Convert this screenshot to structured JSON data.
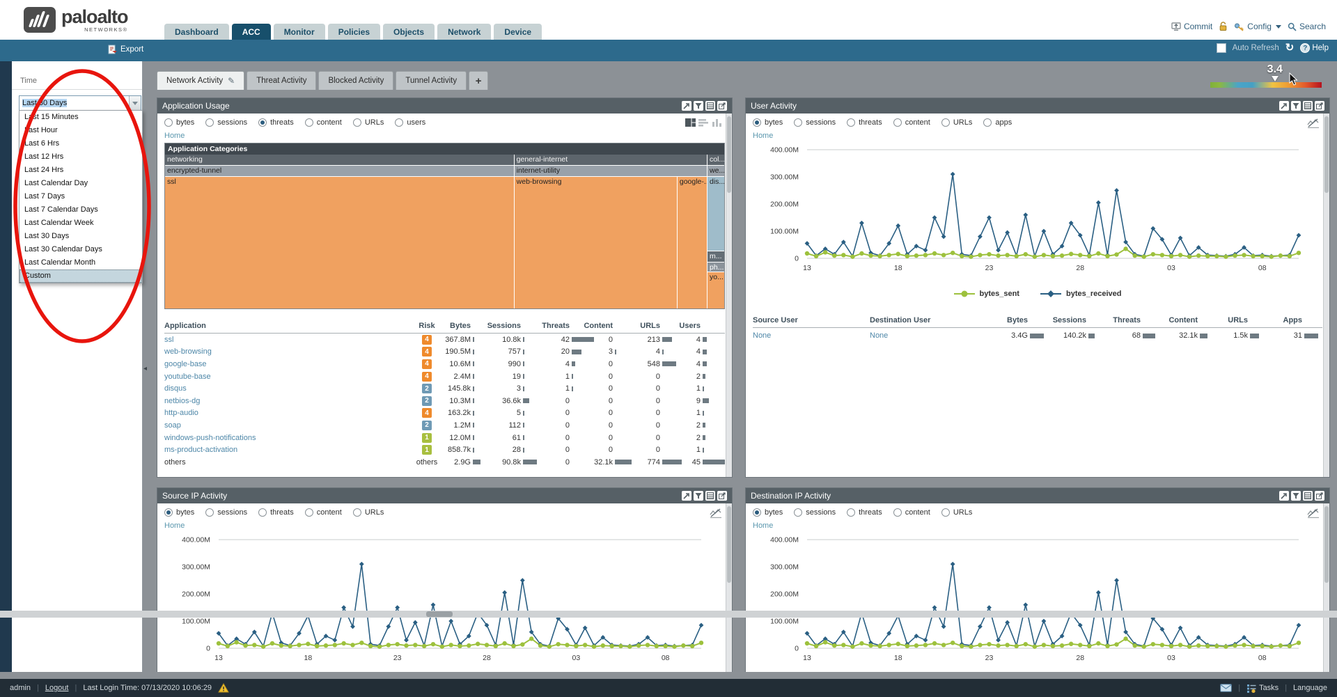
{
  "colors": {
    "accent_teal": "#2d6a8c",
    "nav_active": "#174f6b",
    "panel_header": "#566066",
    "treemap_orange": "#f0a160",
    "treemap_blue": "#9fbcca",
    "risk4": "#ef8a2c",
    "risk2": "#6f9ab5",
    "risk1": "#a8bf3f",
    "link": "#4e87a8",
    "bytes_sent": "#9dc13d",
    "bytes_received": "#2a5f83",
    "annotation_red": "#e8150d"
  },
  "header": {
    "logo_text": "paloalto",
    "logo_sub": "NETWORKS®",
    "nav_tabs": [
      {
        "label": "Dashboard",
        "active": false
      },
      {
        "label": "ACC",
        "active": true
      },
      {
        "label": "Monitor",
        "active": false
      },
      {
        "label": "Policies",
        "active": false
      },
      {
        "label": "Objects",
        "active": false
      },
      {
        "label": "Network",
        "active": false
      },
      {
        "label": "Device",
        "active": false
      }
    ],
    "commit_label": "Commit",
    "config_label": "Config",
    "search_label": "Search"
  },
  "toolbar": {
    "export_label": "Export",
    "auto_refresh_label": "Auto Refresh",
    "help_label": "Help"
  },
  "sidebar": {
    "time_label": "Time",
    "time_value": "Last 30 Days",
    "dropdown_options": [
      "Last 15 Minutes",
      "Last Hour",
      "Last 6 Hrs",
      "Last 12 Hrs",
      "Last 24 Hrs",
      "Last Calendar Day",
      "Last 7 Days",
      "Last 7 Calendar Days",
      "Last Calendar Week",
      "Last 30 Days",
      "Last 30 Calendar Days",
      "Last Calendar Month",
      "Custom"
    ],
    "highlighted_option": "Custom"
  },
  "acc": {
    "tabs": [
      {
        "label": "Network Activity",
        "active": true
      },
      {
        "label": "Threat Activity",
        "active": false
      },
      {
        "label": "Blocked Activity",
        "active": false
      },
      {
        "label": "Tunnel Activity",
        "active": false
      }
    ],
    "add_tab_label": "+",
    "risk_value": "3.4"
  },
  "panels": {
    "application_usage": {
      "title": "Application Usage",
      "metrics": [
        {
          "label": "bytes",
          "selected": false
        },
        {
          "label": "sessions",
          "selected": false
        },
        {
          "label": "threats",
          "selected": true
        },
        {
          "label": "content",
          "selected": false
        },
        {
          "label": "URLs",
          "selected": false
        },
        {
          "label": "users",
          "selected": false
        }
      ],
      "breadcrumb": "Home",
      "treemap": {
        "title": "Application Categories",
        "columns": [
          {
            "category": "networking",
            "subcategory": "encrypted-tunnel",
            "width_pct": 62.5,
            "layout": "h",
            "blocks": [
              {
                "label": "ssl",
                "color": "#f0a160",
                "text": "#222",
                "size_pct": 100
              }
            ]
          },
          {
            "category": "general-internet",
            "subcategory": "internet-utility",
            "width_pct": 34.5,
            "layout": "h",
            "blocks": [
              {
                "label": "web-browsing",
                "color": "#f0a160",
                "text": "#222",
                "size_pct": 84.7
              },
              {
                "label": "google-...",
                "color": "#f0a160",
                "text": "#222",
                "size_pct": 15.3
              }
            ]
          },
          {
            "category": "col...",
            "subcategory": "we...",
            "width_pct": 3.0,
            "layout": "v",
            "blocks": [
              {
                "label": "dis...",
                "color": "#9fbcca",
                "text": "#222",
                "size_pct": 57
              },
              {
                "label": "m...",
                "color": "#646e76",
                "text": "#fff",
                "size_pct": 8
              },
              {
                "label": "ph...",
                "color": "#8b939b",
                "text": "#fff",
                "size_pct": 7
              },
              {
                "label": "yo...",
                "color": "#f0a160",
                "text": "#222",
                "size_pct": 28
              }
            ]
          }
        ]
      },
      "table": {
        "columns": [
          "Application",
          "Risk",
          "Bytes",
          "Sessions",
          "Threats",
          "Content",
          "URLs",
          "Users"
        ],
        "rows": [
          {
            "application": "ssl",
            "risk": "4",
            "cells": [
              {
                "t": "367.8M",
                "b": 2
              },
              {
                "t": "10.8k",
                "b": 2
              },
              {
                "t": "42",
                "b": 32
              },
              {
                "t": "0",
                "b": 0
              },
              {
                "t": "213",
                "b": 14
              },
              {
                "t": "4",
                "b": 6
              }
            ]
          },
          {
            "application": "web-browsing",
            "risk": "4",
            "cells": [
              {
                "t": "190.5M",
                "b": 2
              },
              {
                "t": "757",
                "b": 2
              },
              {
                "t": "20",
                "b": 14
              },
              {
                "t": "3",
                "b": 2
              },
              {
                "t": "4",
                "b": 2
              },
              {
                "t": "4",
                "b": 6
              }
            ]
          },
          {
            "application": "google-base",
            "risk": "4",
            "cells": [
              {
                "t": "10.6M",
                "b": 2
              },
              {
                "t": "990",
                "b": 2
              },
              {
                "t": "4",
                "b": 5
              },
              {
                "t": "0",
                "b": 0
              },
              {
                "t": "548",
                "b": 20
              },
              {
                "t": "4",
                "b": 6
              }
            ]
          },
          {
            "application": "youtube-base",
            "risk": "4",
            "cells": [
              {
                "t": "2.4M",
                "b": 2
              },
              {
                "t": "19",
                "b": 2
              },
              {
                "t": "1",
                "b": 2
              },
              {
                "t": "0",
                "b": 0
              },
              {
                "t": "0",
                "b": 0
              },
              {
                "t": "2",
                "b": 4
              }
            ]
          },
          {
            "application": "disqus",
            "risk": "2",
            "cells": [
              {
                "t": "145.8k",
                "b": 2
              },
              {
                "t": "3",
                "b": 2
              },
              {
                "t": "1",
                "b": 2
              },
              {
                "t": "0",
                "b": 0
              },
              {
                "t": "0",
                "b": 0
              },
              {
                "t": "1",
                "b": 2
              }
            ]
          },
          {
            "application": "netbios-dg",
            "risk": "2",
            "cells": [
              {
                "t": "10.3M",
                "b": 2
              },
              {
                "t": "36.6k",
                "b": 9
              },
              {
                "t": "0",
                "b": 0
              },
              {
                "t": "0",
                "b": 0
              },
              {
                "t": "0",
                "b": 0
              },
              {
                "t": "9",
                "b": 9
              }
            ]
          },
          {
            "application": "http-audio",
            "risk": "4",
            "cells": [
              {
                "t": "163.2k",
                "b": 2
              },
              {
                "t": "5",
                "b": 2
              },
              {
                "t": "0",
                "b": 0
              },
              {
                "t": "0",
                "b": 0
              },
              {
                "t": "0",
                "b": 0
              },
              {
                "t": "1",
                "b": 2
              }
            ]
          },
          {
            "application": "soap",
            "risk": "2",
            "cells": [
              {
                "t": "1.2M",
                "b": 2
              },
              {
                "t": "112",
                "b": 2
              },
              {
                "t": "0",
                "b": 0
              },
              {
                "t": "0",
                "b": 0
              },
              {
                "t": "0",
                "b": 0
              },
              {
                "t": "2",
                "b": 4
              }
            ]
          },
          {
            "application": "windows-push-notifications",
            "risk": "1",
            "cells": [
              {
                "t": "12.0M",
                "b": 2
              },
              {
                "t": "61",
                "b": 2
              },
              {
                "t": "0",
                "b": 0
              },
              {
                "t": "0",
                "b": 0
              },
              {
                "t": "0",
                "b": 0
              },
              {
                "t": "2",
                "b": 4
              }
            ]
          },
          {
            "application": "ms-product-activation",
            "risk": "1",
            "cells": [
              {
                "t": "858.7k",
                "b": 2
              },
              {
                "t": "28",
                "b": 2
              },
              {
                "t": "0",
                "b": 0
              },
              {
                "t": "0",
                "b": 0
              },
              {
                "t": "0",
                "b": 0
              },
              {
                "t": "1",
                "b": 2
              }
            ]
          },
          {
            "application": "others",
            "risk": "others",
            "cells": [
              {
                "t": "2.9G",
                "b": 11
              },
              {
                "t": "90.8k",
                "b": 20
              },
              {
                "t": "0",
                "b": 0
              },
              {
                "t": "32.1k",
                "b": 24
              },
              {
                "t": "774",
                "b": 28
              },
              {
                "t": "45",
                "b": 36
              }
            ]
          }
        ]
      }
    },
    "user_activity": {
      "title": "User Activity",
      "metrics": [
        {
          "label": "bytes",
          "selected": true
        },
        {
          "label": "sessions",
          "selected": false
        },
        {
          "label": "threats",
          "selected": false
        },
        {
          "label": "content",
          "selected": false
        },
        {
          "label": "URLs",
          "selected": false
        },
        {
          "label": "apps",
          "selected": false
        }
      ],
      "breadcrumb": "Home",
      "table": {
        "columns": [
          "Source User",
          "Destination User",
          "Bytes",
          "Sessions",
          "Threats",
          "Content",
          "URLs",
          "Apps"
        ],
        "rows": [
          {
            "source_user": "None",
            "destination_user": "None",
            "cells": [
              {
                "t": "3.4G",
                "b": 20
              },
              {
                "t": "140.2k",
                "b": 9
              },
              {
                "t": "68",
                "b": 18
              },
              {
                "t": "32.1k",
                "b": 11
              },
              {
                "t": "1.5k",
                "b": 13
              },
              {
                "t": "31",
                "b": 20
              }
            ]
          }
        ]
      }
    },
    "source_ip_activity": {
      "title": "Source IP Activity",
      "metrics": [
        {
          "label": "bytes",
          "selected": true
        },
        {
          "label": "sessions",
          "selected": false
        },
        {
          "label": "threats",
          "selected": false
        },
        {
          "label": "content",
          "selected": false
        },
        {
          "label": "URLs",
          "selected": false
        }
      ],
      "breadcrumb": "Home"
    },
    "destination_ip_activity": {
      "title": "Destination IP Activity",
      "metrics": [
        {
          "label": "bytes",
          "selected": true
        },
        {
          "label": "sessions",
          "selected": false
        },
        {
          "label": "threats",
          "selected": false
        },
        {
          "label": "content",
          "selected": false
        },
        {
          "label": "URLs",
          "selected": false
        }
      ],
      "breadcrumb": "Home"
    }
  },
  "chart_data": {
    "type": "line",
    "note": "identical traffic-over-time chart shown in User Activity, Source IP Activity and Destination IP Activity panels",
    "x_tick_labels": [
      "13",
      "18",
      "23",
      "28",
      "03",
      "08"
    ],
    "x_tick_indices": [
      0,
      10,
      20,
      30,
      40,
      50
    ],
    "y_tick_labels": [
      "400.00M",
      "300.00M",
      "200.00M",
      "100.00M",
      "0"
    ],
    "y_tick_values_M": [
      400,
      300,
      200,
      100,
      0
    ],
    "ylim_M": [
      0,
      400
    ],
    "series": [
      {
        "name": "bytes_sent",
        "color": "#9dc13d",
        "marker": "circle",
        "values_M": [
          18,
          8,
          22,
          10,
          12,
          6,
          18,
          10,
          8,
          12,
          16,
          8,
          10,
          12,
          18,
          12,
          20,
          8,
          6,
          12,
          15,
          10,
          12,
          8,
          15,
          6,
          12,
          8,
          10,
          16,
          12,
          8,
          18,
          8,
          14,
          35,
          10,
          6,
          15,
          12,
          8,
          12,
          6,
          10,
          8,
          8,
          6,
          10,
          12,
          8,
          8,
          6,
          10,
          8,
          20
        ]
      },
      {
        "name": "bytes_received",
        "color": "#2a5f83",
        "marker": "diamond",
        "values_M": [
          55,
          10,
          35,
          15,
          60,
          8,
          130,
          20,
          10,
          55,
          120,
          15,
          45,
          30,
          150,
          80,
          310,
          15,
          10,
          80,
          150,
          30,
          95,
          10,
          160,
          8,
          100,
          15,
          45,
          130,
          85,
          12,
          205,
          12,
          250,
          60,
          15,
          8,
          110,
          70,
          12,
          75,
          10,
          40,
          12,
          10,
          8,
          15,
          40,
          10,
          12,
          8,
          10,
          12,
          85
        ]
      }
    ],
    "legend_position": "bottom"
  },
  "status_bar": {
    "user": "admin",
    "logout_label": "Logout",
    "last_login": "Last Login Time: 07/13/2020 10:06:29",
    "tasks_label": "Tasks",
    "language_label": "Language"
  },
  "icons": {
    "logo-mark": "palo alto waves mark",
    "commit-icon": "upload/commit device",
    "lock-icon": "unlocked padlock",
    "config-icon": "key",
    "search-icon": "magnifier",
    "export-icon": "document with red arrow",
    "auto-refresh-checkbox": "empty checkbox",
    "refresh-icon": "circular arrow",
    "help-icon": "question mark circle",
    "pencil-icon": "edit pencil on active tab",
    "panel-maximize-icon": "jump to detached view",
    "panel-filter-icon": "funnel",
    "panel-table-icon": "list/table view",
    "panel-export-icon": "export widget",
    "treemap-view-icon": "treemap chart type (active)",
    "bar-view-icon": "bar chart type",
    "column-view-icon": "column chart type",
    "line-toggle-icon": "line chart with strike",
    "collapse-sidebar-icon": "left arrow",
    "warning-icon": "yellow warning triangle",
    "mail-icon": "envelope",
    "tasks-icon": "task list",
    "cursor": "mouse pointer near risk meter"
  }
}
